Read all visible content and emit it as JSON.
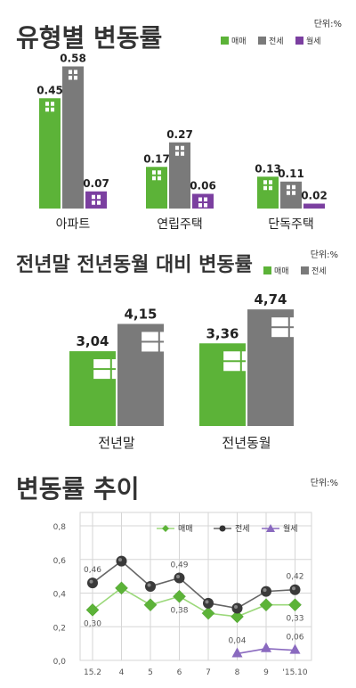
{
  "colors": {
    "sale": "#5cb338",
    "jeonse": "#7a7a7a",
    "wolse": "#7b3fa0",
    "purple_marker": "#8a6abf",
    "grid": "#d6d6d6",
    "line_sale": "#9bd87a"
  },
  "chart_data": [
    {
      "type": "bar",
      "title": "유형별 변동률",
      "unit": "단위:%",
      "legend": [
        "매매",
        "전세",
        "월세"
      ],
      "legend_position": "top-right",
      "categories": [
        "아파트",
        "연립주택",
        "단독주택"
      ],
      "series": [
        {
          "name": "매매",
          "values": [
            0.45,
            0.17,
            0.13
          ],
          "labels": [
            "0.45",
            "0.17",
            "0.13"
          ]
        },
        {
          "name": "전세",
          "values": [
            0.58,
            0.27,
            0.11
          ],
          "labels": [
            "0.58",
            "0.27",
            "0.11"
          ]
        },
        {
          "name": "월세",
          "values": [
            0.07,
            0.06,
            0.02
          ],
          "labels": [
            "0.07",
            "0.06",
            "0.02"
          ]
        }
      ],
      "ylim": [
        0,
        0.6
      ]
    },
    {
      "type": "bar",
      "title": "전년말 전년동월 대비 변동률",
      "unit": "단위:%",
      "legend": [
        "매매",
        "전세"
      ],
      "legend_position": "top-right",
      "categories": [
        "전년말",
        "전년동월"
      ],
      "series": [
        {
          "name": "매매",
          "values": [
            3.04,
            3.36
          ],
          "labels": [
            "3,04",
            "3,36"
          ]
        },
        {
          "name": "전세",
          "values": [
            4.15,
            4.74
          ],
          "labels": [
            "4,15",
            "4,74"
          ]
        }
      ],
      "ylim": [
        0,
        5
      ]
    },
    {
      "type": "line",
      "title": "변동률 추이",
      "unit": "단위:%",
      "legend": [
        "매매",
        "전세",
        "월세"
      ],
      "legend_position": "top-right",
      "x": [
        "15.2",
        "4",
        "5",
        "6",
        "7",
        "8",
        "9",
        "'15.10"
      ],
      "yticks": [
        "0,8",
        "0,6",
        "0,4",
        "0,2",
        "0,0"
      ],
      "ylim": [
        0,
        0.8
      ],
      "grid": true,
      "series": [
        {
          "name": "매매",
          "values": [
            0.3,
            0.43,
            0.33,
            0.38,
            0.28,
            0.26,
            0.33,
            0.33
          ]
        },
        {
          "name": "전세",
          "values": [
            0.46,
            0.59,
            0.44,
            0.49,
            0.34,
            0.31,
            0.41,
            0.42
          ]
        },
        {
          "name": "월세",
          "values": [
            null,
            null,
            null,
            null,
            null,
            0.04,
            0.07,
            0.06
          ]
        }
      ],
      "annotations": [
        {
          "series": 1,
          "index": 0,
          "text": "0,46",
          "pos": "above"
        },
        {
          "series": 1,
          "index": 3,
          "text": "0,49",
          "pos": "above"
        },
        {
          "series": 1,
          "index": 7,
          "text": "0,42",
          "pos": "above"
        },
        {
          "series": 0,
          "index": 0,
          "text": "0,30",
          "pos": "below"
        },
        {
          "series": 0,
          "index": 3,
          "text": "0,38",
          "pos": "below"
        },
        {
          "series": 0,
          "index": 7,
          "text": "0,33",
          "pos": "below"
        },
        {
          "series": 2,
          "index": 5,
          "text": "0,04",
          "pos": "above"
        },
        {
          "series": 2,
          "index": 7,
          "text": "0,06",
          "pos": "above"
        }
      ]
    }
  ]
}
